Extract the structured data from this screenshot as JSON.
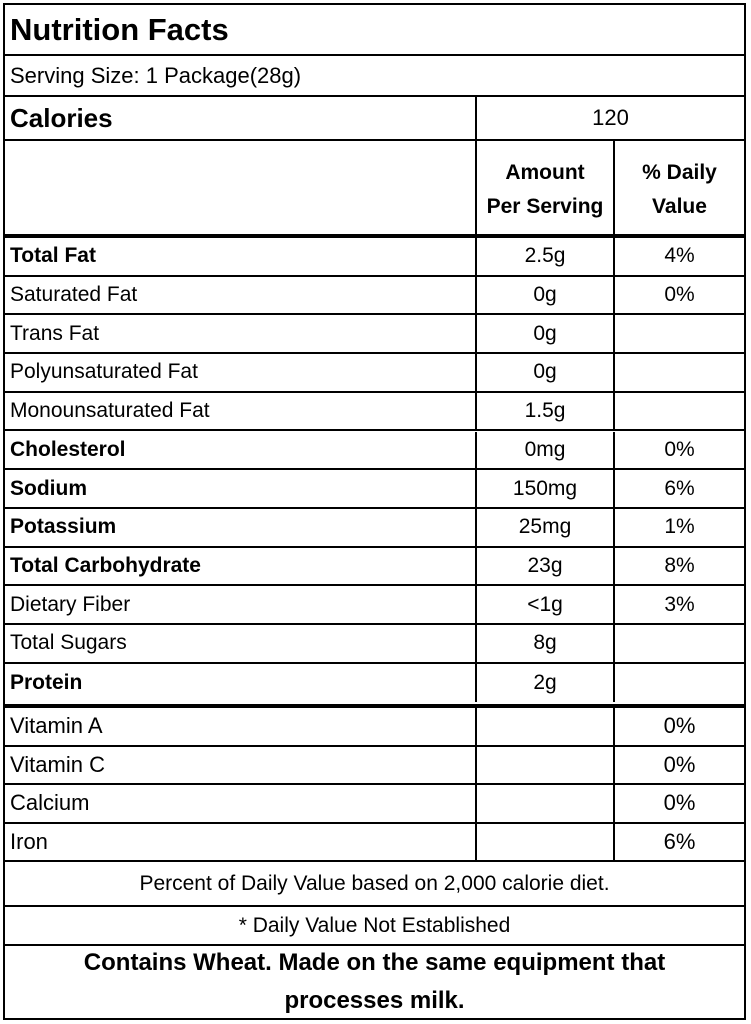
{
  "title": "Nutrition Facts",
  "serving_size": "Serving Size: 1 Package(28g)",
  "calories": {
    "label": "Calories",
    "value": "120"
  },
  "header": {
    "amount_line1": "Amount",
    "amount_line2": "Per Serving",
    "dv_line1": "% Daily",
    "dv_line2": "Value"
  },
  "nutrients": [
    {
      "name": "Total Fat",
      "amount": "2.5g",
      "dv": "4%"
    },
    {
      "name": "Saturated Fat",
      "amount": "0g",
      "dv": "0%"
    },
    {
      "name": "Trans Fat",
      "amount": "0g",
      "dv": ""
    },
    {
      "name": "Polyunsaturated Fat",
      "amount": "0g",
      "dv": ""
    },
    {
      "name": "Monounsaturated Fat",
      "amount": "1.5g",
      "dv": ""
    },
    {
      "name": "Cholesterol",
      "amount": "0mg",
      "dv": "0%"
    },
    {
      "name": "Sodium",
      "amount": "150mg",
      "dv": "6%"
    },
    {
      "name": "Potassium",
      "amount": "25mg",
      "dv": "1%"
    },
    {
      "name": "Total Carbohydrate",
      "amount": "23g",
      "dv": "8%"
    },
    {
      "name": "Dietary Fiber",
      "amount": "<1g",
      "dv": "3%"
    },
    {
      "name": "Total Sugars",
      "amount": "8g",
      "dv": ""
    },
    {
      "name": "Protein",
      "amount": "2g",
      "dv": ""
    }
  ],
  "vitamins": [
    {
      "name": "Vitamin A",
      "dv": "0%"
    },
    {
      "name": "Vitamin C",
      "dv": "0%"
    },
    {
      "name": "Calcium",
      "dv": "0%"
    },
    {
      "name": "Iron",
      "dv": "6%"
    }
  ],
  "footnote_dv": "Percent of Daily Value based on 2,000 calorie diet.",
  "footnote_not_established": "* Daily Value Not Established",
  "allergen_line1": "Contains Wheat.  Made on the same equipment that",
  "allergen_line2": "processes milk."
}
